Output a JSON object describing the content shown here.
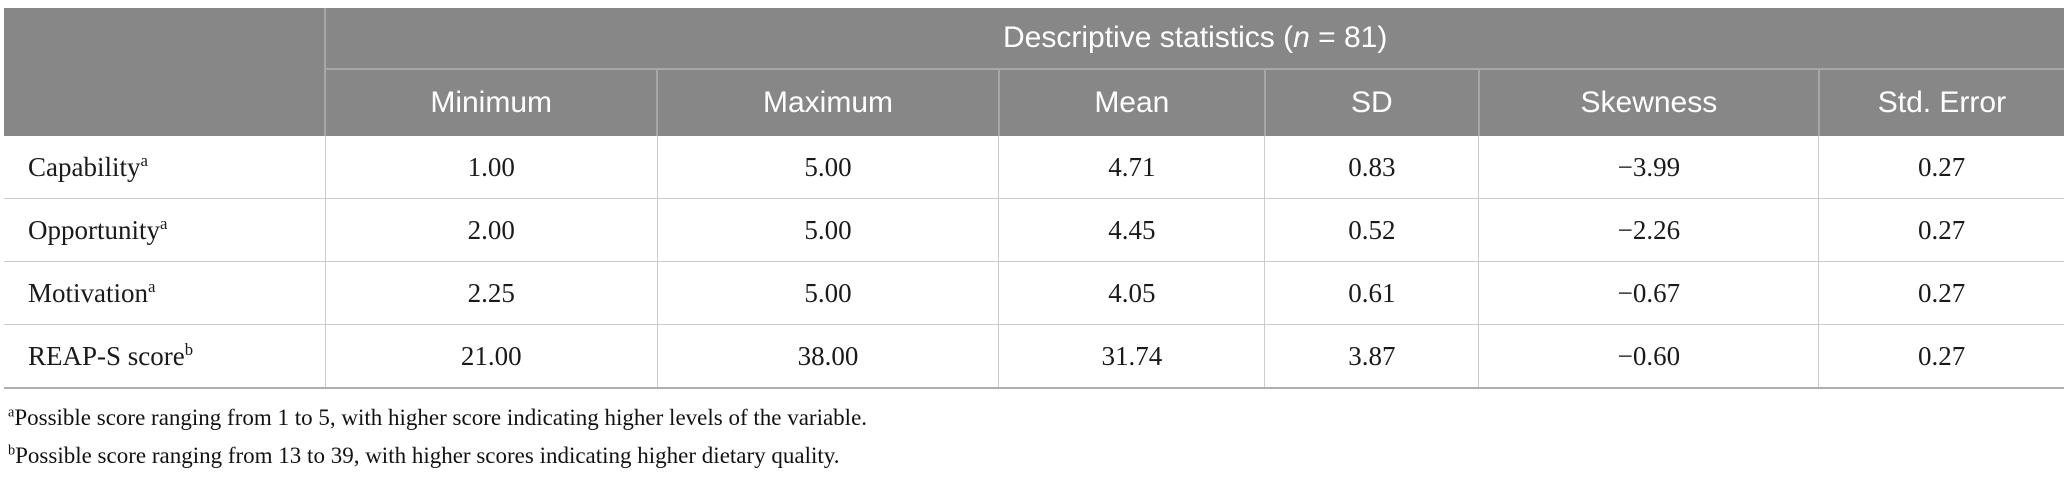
{
  "table": {
    "title": {
      "pre": "Descriptive statistics (",
      "italic": "n",
      "post": " = 81)"
    },
    "columns": [
      "Minimum",
      "Maximum",
      "Mean",
      "SD",
      "Skewness",
      "Std. Error"
    ],
    "rows": [
      {
        "label": "Capability",
        "sup": "a",
        "values": [
          "1.00",
          "5.00",
          "4.71",
          "0.83",
          "−3.99",
          "0.27"
        ]
      },
      {
        "label": "Opportunity",
        "sup": "a",
        "values": [
          "2.00",
          "5.00",
          "4.45",
          "0.52",
          "−2.26",
          "0.27"
        ]
      },
      {
        "label": "Motivation",
        "sup": "a",
        "values": [
          "2.25",
          "5.00",
          "4.05",
          "0.61",
          "−0.67",
          "0.27"
        ]
      },
      {
        "label": "REAP-S score",
        "sup": "b",
        "values": [
          "21.00",
          "38.00",
          "31.74",
          "3.87",
          "−0.60",
          "0.27"
        ]
      }
    ]
  },
  "footnotes": [
    {
      "sup": "a",
      "text": "Possible score ranging from 1 to 5, with higher score indicating higher levels of the variable."
    },
    {
      "sup": "b",
      "text": "Possible score ranging from 13 to 39, with higher scores indicating higher dietary quality."
    }
  ],
  "colors": {
    "header_bg": "#878787",
    "header_text": "#ffffff",
    "header_divider": "#a6a6a6",
    "row_divider": "#cccccc",
    "table_bottom_border": "#aeaeae",
    "body_text": "#1a1a1a"
  }
}
